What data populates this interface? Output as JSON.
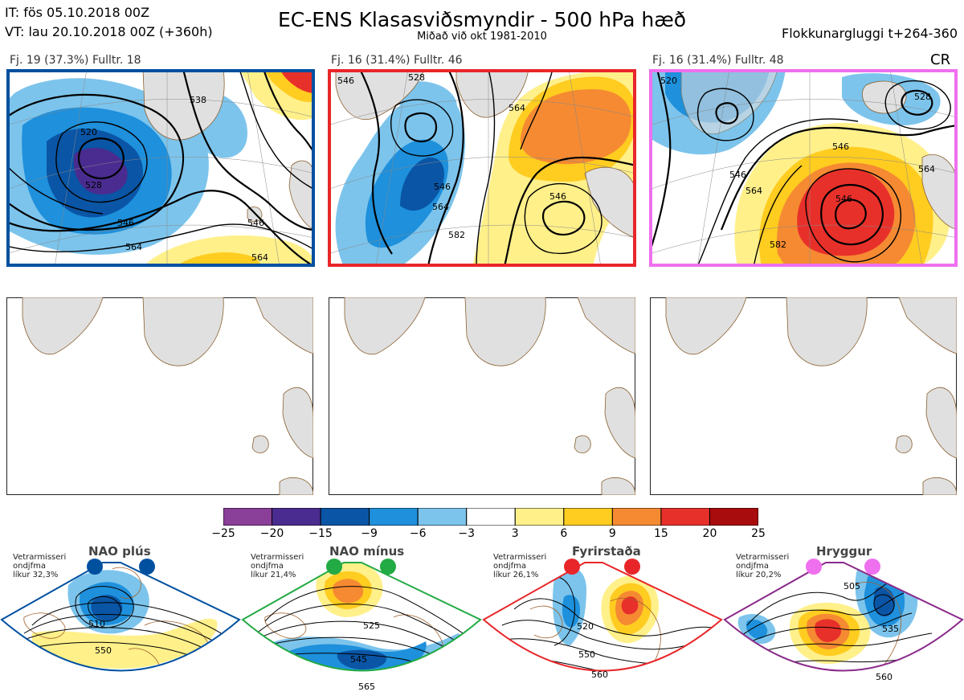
{
  "header": {
    "issue_time": "IT: fös 05.10.2018 00Z",
    "valid_time": "VT: lau 20.10.2018 00Z  (+360h)",
    "title": "EC-ENS Klasasviðsmyndir - 500 hPa hæð",
    "subtitle": "Miðað við okt 1981-2010",
    "window": "Flokkunargluggi t+264-360"
  },
  "clusters": [
    {
      "label": "Fj. 19 (37.3%)   Fulltr. 18",
      "border_color": "#0050a0",
      "contours": [
        "520",
        "528",
        "538",
        "546",
        "564",
        "564",
        "546"
      ]
    },
    {
      "label": "Fj. 16 (31.4%)   Fulltr. 46",
      "border_color": "#e8262a",
      "contours": [
        "546",
        "528",
        "546",
        "564",
        "564",
        "546",
        "582"
      ]
    },
    {
      "label": "Fj. 16 (31.4%)   Fulltr. 48",
      "border_color": "#ee70ee",
      "contours": [
        "520",
        "528",
        "546",
        "564",
        "546",
        "546",
        "582",
        "564"
      ]
    }
  ],
  "cr_label": "CR",
  "colorbar": {
    "ticks": [
      "−25",
      "−20",
      "−15",
      "−9",
      "−6",
      "−3",
      "3",
      "6",
      "9",
      "15",
      "20",
      "25"
    ],
    "colors": [
      "#8a3f98",
      "#4a2c90",
      "#0a55a5",
      "#1e90dc",
      "#7cc4ec",
      "#ffffff",
      "#fff08a",
      "#ffcc20",
      "#f58a32",
      "#e8302a",
      "#a80c0c"
    ]
  },
  "regimes": [
    {
      "name": "NAO plús",
      "note1": "Vetrarmisseri",
      "note2": "ondjfma",
      "note3": "líkur 32,3%",
      "dot_color": "#0050a0",
      "line_color": "#0050a0",
      "labels": [
        "510",
        "550"
      ]
    },
    {
      "name": "NAO mínus",
      "note1": "Vetrarmisseri",
      "note2": "ondjfma",
      "note3": "líkur 21,4%",
      "dot_color": "#22aa44",
      "line_color": "#22aa44",
      "labels": [
        "525",
        "545",
        "565"
      ]
    },
    {
      "name": "Fyrirstaða",
      "note1": "Vetrarmisseri",
      "note2": "ondjfma",
      "note3": "líkur 26,1%",
      "dot_color": "#e8262a",
      "line_color": "#e8262a",
      "labels": [
        "520",
        "550",
        "560"
      ]
    },
    {
      "name": "Hryggur",
      "note1": "Vetrarmisseri",
      "note2": "ondjfma",
      "note3": "líkur 20,2%",
      "dot_color": "#ee70ee",
      "line_color": "#8a2a8a",
      "labels": [
        "505",
        "535",
        "560"
      ]
    }
  ]
}
